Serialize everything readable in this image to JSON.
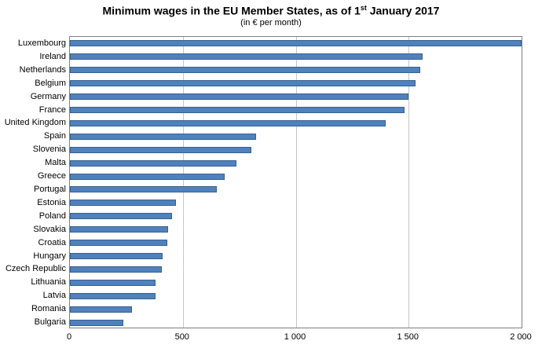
{
  "title": {
    "prefix": "Minimum wages in the EU Member States, as of 1",
    "superscript": "st",
    "suffix": " January 2017"
  },
  "subtitle": "(in € per month)",
  "colors": {
    "bar_fill": "#4f81bd",
    "bar_border": "#38618e",
    "gridline": "#c6c6c6",
    "plot_border": "#808080"
  },
  "chart_data": {
    "type": "bar",
    "orientation": "horizontal",
    "title": "Minimum wages in the EU Member States, as of 1st January 2017",
    "subtitle": "(in € per month)",
    "xlabel": "",
    "ylabel": "",
    "xlim": [
      0,
      2000
    ],
    "grid": true,
    "legend": false,
    "x_ticks": [
      {
        "value": 0,
        "label": "0"
      },
      {
        "value": 500,
        "label": "500"
      },
      {
        "value": 1000,
        "label": "1 000"
      },
      {
        "value": 1500,
        "label": "1 500"
      },
      {
        "value": 2000,
        "label": "2 000"
      }
    ],
    "categories": [
      "Luxembourg",
      "Ireland",
      "Netherlands",
      "Belgium",
      "Germany",
      "France",
      "United Kingdom",
      "Spain",
      "Slovenia",
      "Malta",
      "Greece",
      "Portugal",
      "Estonia",
      "Poland",
      "Slovakia",
      "Croatia",
      "Hungary",
      "Czech Republic",
      "Lithuania",
      "Latvia",
      "Romania",
      "Bulgaria"
    ],
    "values": [
      1999,
      1563,
      1552,
      1532,
      1498,
      1480,
      1397,
      826,
      805,
      736,
      684,
      650,
      470,
      453,
      435,
      433,
      412,
      407,
      380,
      380,
      275,
      235
    ]
  }
}
